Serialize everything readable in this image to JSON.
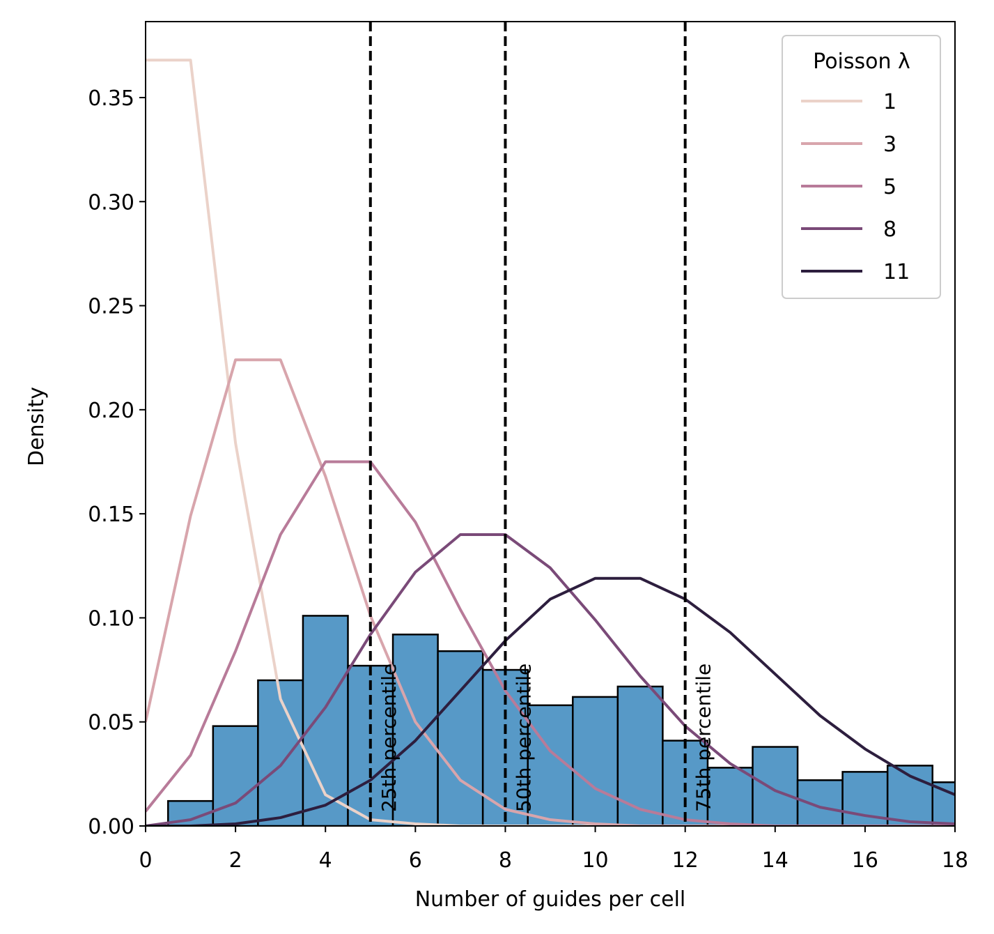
{
  "chart_data": {
    "type": "bar",
    "xlabel": "Number of guides per cell",
    "ylabel": "Density",
    "xlim": [
      0,
      18
    ],
    "ylim": [
      0,
      0.3865
    ],
    "grid": false,
    "x_ticks": [
      0,
      2,
      4,
      6,
      8,
      10,
      12,
      14,
      16,
      18
    ],
    "x_tick_labels": [
      "0",
      "2",
      "4",
      "6",
      "8",
      "10",
      "12",
      "14",
      "16",
      "18"
    ],
    "y_ticks": [
      0.0,
      0.05,
      0.1,
      0.15,
      0.2,
      0.25,
      0.3,
      0.35
    ],
    "y_tick_labels": [
      "0.00",
      "0.05",
      "0.10",
      "0.15",
      "0.20",
      "0.25",
      "0.30",
      "0.35"
    ],
    "histogram": {
      "color": "#5799c7",
      "bin_width": 1,
      "bins": [
        {
          "x": 1,
          "value": 0.012
        },
        {
          "x": 2,
          "value": 0.048
        },
        {
          "x": 3,
          "value": 0.07
        },
        {
          "x": 4,
          "value": 0.101
        },
        {
          "x": 5,
          "value": 0.077
        },
        {
          "x": 6,
          "value": 0.092
        },
        {
          "x": 7,
          "value": 0.084
        },
        {
          "x": 8,
          "value": 0.075
        },
        {
          "x": 9,
          "value": 0.058
        },
        {
          "x": 10,
          "value": 0.062
        },
        {
          "x": 11,
          "value": 0.067
        },
        {
          "x": 12,
          "value": 0.041
        },
        {
          "x": 13,
          "value": 0.028
        },
        {
          "x": 14,
          "value": 0.038
        },
        {
          "x": 15,
          "value": 0.022
        },
        {
          "x": 16,
          "value": 0.026
        },
        {
          "x": 17,
          "value": 0.029
        },
        {
          "x": 18,
          "value": 0.021
        }
      ]
    },
    "percentiles": [
      {
        "x": 5,
        "label": "25th percentile"
      },
      {
        "x": 8,
        "label": "50th percentile"
      },
      {
        "x": 12,
        "label": "75th percentile"
      }
    ],
    "legend": {
      "title": "Poisson λ",
      "placement": "top-right"
    },
    "series": [
      {
        "name": "1",
        "color": "#ebd2c9",
        "x": [
          0,
          1,
          2,
          3,
          4,
          5,
          6,
          7,
          8,
          9,
          10,
          11,
          12,
          13,
          14,
          15,
          16,
          17,
          18
        ],
        "values": [
          0.368,
          0.368,
          0.184,
          0.061,
          0.015,
          0.003,
          0.001,
          0,
          0,
          0,
          0,
          0,
          0,
          0,
          0,
          0,
          0,
          0,
          0
        ]
      },
      {
        "name": "3",
        "color": "#d8a5ac",
        "x": [
          0,
          1,
          2,
          3,
          4,
          5,
          6,
          7,
          8,
          9,
          10,
          11,
          12,
          13,
          14,
          15,
          16,
          17,
          18
        ],
        "values": [
          0.05,
          0.149,
          0.224,
          0.224,
          0.168,
          0.101,
          0.05,
          0.022,
          0.008,
          0.003,
          0.001,
          0,
          0,
          0,
          0,
          0,
          0,
          0,
          0
        ]
      },
      {
        "name": "5",
        "color": "#b87b99",
        "x": [
          0,
          1,
          2,
          3,
          4,
          5,
          6,
          7,
          8,
          9,
          10,
          11,
          12,
          13,
          14,
          15,
          16,
          17,
          18
        ],
        "values": [
          0.007,
          0.034,
          0.084,
          0.14,
          0.175,
          0.175,
          0.146,
          0.104,
          0.065,
          0.036,
          0.018,
          0.008,
          0.003,
          0.001,
          0,
          0,
          0,
          0,
          0
        ]
      },
      {
        "name": "8",
        "color": "#7a4a78",
        "x": [
          0,
          1,
          2,
          3,
          4,
          5,
          6,
          7,
          8,
          9,
          10,
          11,
          12,
          13,
          14,
          15,
          16,
          17,
          18
        ],
        "values": [
          0,
          0.003,
          0.011,
          0.029,
          0.057,
          0.092,
          0.122,
          0.14,
          0.14,
          0.124,
          0.099,
          0.072,
          0.048,
          0.03,
          0.017,
          0.009,
          0.005,
          0.002,
          0.001
        ]
      },
      {
        "name": "11",
        "color": "#2d1e3e",
        "x": [
          0,
          1,
          2,
          3,
          4,
          5,
          6,
          7,
          8,
          9,
          10,
          11,
          12,
          13,
          14,
          15,
          16,
          17,
          18
        ],
        "values": [
          0,
          0,
          0.001,
          0.004,
          0.01,
          0.022,
          0.041,
          0.065,
          0.089,
          0.109,
          0.119,
          0.119,
          0.109,
          0.093,
          0.073,
          0.053,
          0.037,
          0.024,
          0.015
        ]
      }
    ]
  }
}
